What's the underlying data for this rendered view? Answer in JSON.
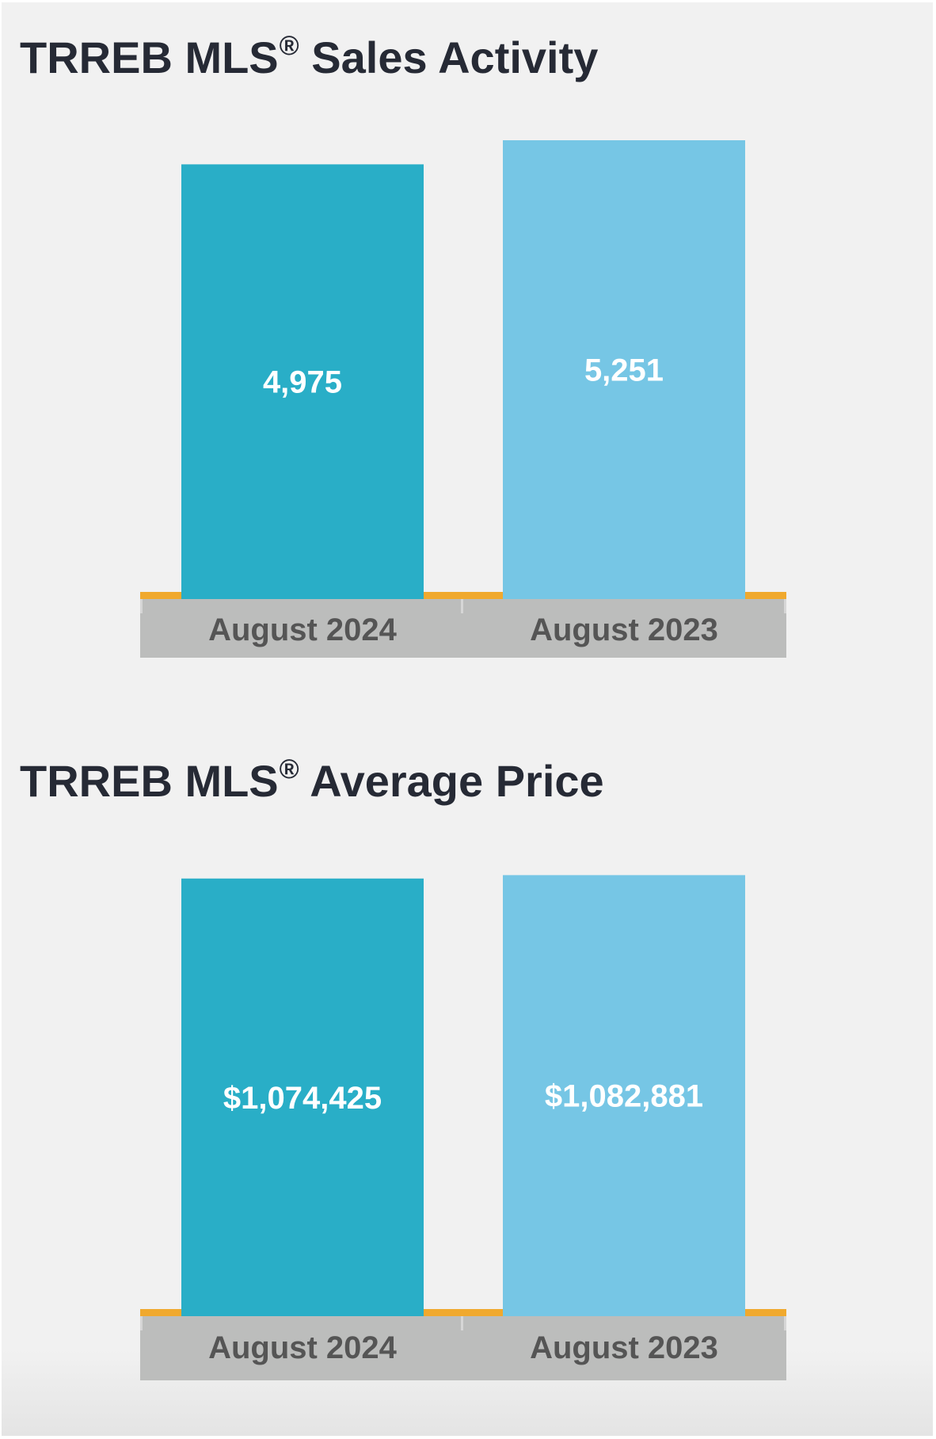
{
  "colors": {
    "background": "#f1f1f1",
    "title": "#262a35",
    "bar_current": "#29aec7",
    "bar_previous": "#76c6e5",
    "axis_line": "#f0a92e",
    "axis_band": "#bcbdbc",
    "axis_text": "#555555",
    "value_text": "#ffffff"
  },
  "chart_data": [
    {
      "type": "bar",
      "title": "TRREB MLS",
      "title_mark": "®",
      "title_suffix": "Sales Activity",
      "categories": [
        "August 2024",
        "August 2023"
      ],
      "values": [
        4975,
        5251
      ],
      "value_labels": [
        "4,975",
        "5,251"
      ],
      "xlabel": "",
      "ylabel": "",
      "ylim": [
        0,
        6000
      ],
      "grid": false,
      "legend": "none"
    },
    {
      "type": "bar",
      "title": "TRREB MLS",
      "title_mark": "®",
      "title_suffix": "Average Price",
      "categories": [
        "August 2024",
        "August 2023"
      ],
      "values": [
        1074425,
        1082881
      ],
      "value_labels": [
        "$1,074,425",
        "$1,082,881"
      ],
      "xlabel": "",
      "ylabel": "",
      "ylim": [
        0,
        1200000
      ],
      "grid": false,
      "legend": "none"
    }
  ]
}
